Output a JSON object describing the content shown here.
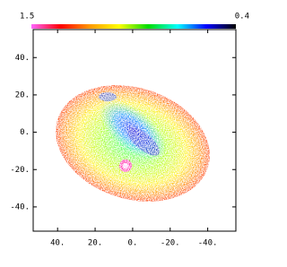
{
  "chart_data": {
    "type": "image",
    "colorbar": {
      "labels": [
        1.5,
        0.4
      ],
      "colors": [
        "#ff66ff",
        "#ff0000",
        "#ff9900",
        "#ffff00",
        "#00dd00",
        "#00ffff",
        "#0000ff",
        "#000000"
      ]
    },
    "xlim": [
      53,
      -55
    ],
    "xticks": [
      {
        "value": 40,
        "label": "40."
      },
      {
        "value": 20,
        "label": "20."
      },
      {
        "value": 0,
        "label": "0."
      },
      {
        "value": -20,
        "label": "-20."
      },
      {
        "value": -40,
        "label": "-40."
      }
    ],
    "ylim": [
      -53,
      55
    ],
    "yticks": [
      {
        "value": 40,
        "label": "40."
      },
      {
        "value": 20,
        "label": "20."
      },
      {
        "value": 0,
        "label": "0."
      },
      {
        "value": -20,
        "label": "-20."
      },
      {
        "value": -40,
        "label": "-40."
      }
    ]
  }
}
